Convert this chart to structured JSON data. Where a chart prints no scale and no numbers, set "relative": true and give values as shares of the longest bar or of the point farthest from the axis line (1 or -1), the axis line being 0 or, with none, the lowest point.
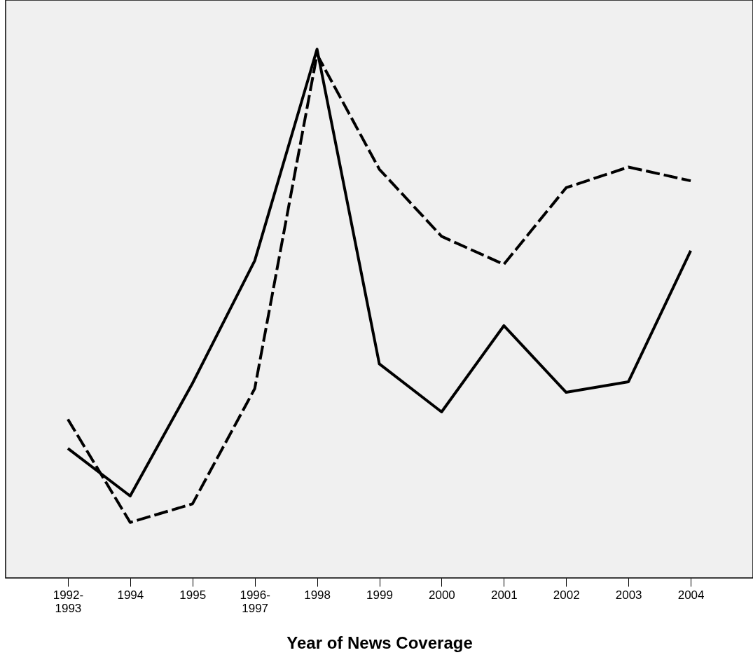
{
  "chart_data": {
    "type": "line",
    "relative": true,
    "xlabel": "Year of News Coverage",
    "categories": [
      "1992-1993",
      "1994",
      "1995",
      "1996-1997",
      "1998",
      "1999",
      "2000",
      "2001",
      "2002",
      "2003",
      "2004"
    ],
    "series": [
      {
        "color": "#000000",
        "line_style": "solid",
        "values": [
          0.245,
          0.155,
          0.368,
          0.6,
          1.0,
          0.405,
          0.314,
          0.477,
          0.351,
          0.371,
          0.619
        ]
      },
      {
        "color": "#000000",
        "line_style": "dashed",
        "values": [
          0.3,
          0.105,
          0.14,
          0.358,
          0.99,
          0.773,
          0.646,
          0.593,
          0.738,
          0.777,
          0.751
        ]
      }
    ],
    "grid": false,
    "legend": false,
    "marker": "none"
  }
}
